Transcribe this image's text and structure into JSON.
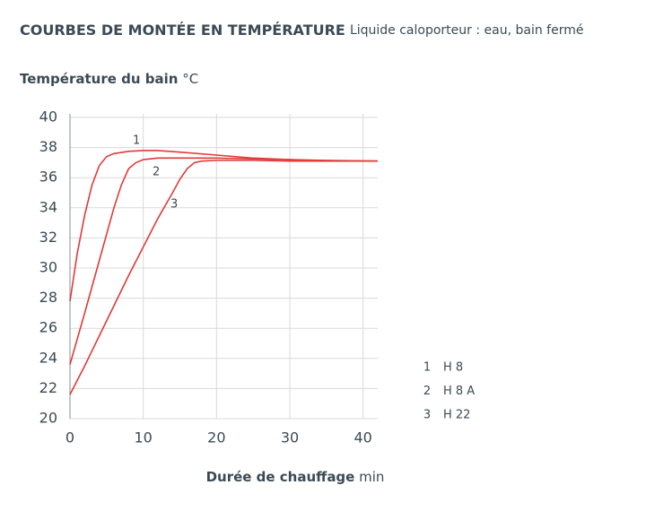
{
  "chart_data": {
    "type": "line",
    "title": "COURBES DE MONTÉE EN TEMPÉRATURE",
    "subtitle": "Liquide caloporteur : eau, bain fermé",
    "y_label": "Température du bain",
    "y_unit": "°C",
    "x_label": "Durée de chauffage",
    "x_unit": "min",
    "xlim": [
      0,
      42
    ],
    "xticks": [
      0,
      10,
      20,
      30,
      40
    ],
    "ylim": [
      20,
      40
    ],
    "yticks": [
      20,
      22,
      24,
      26,
      28,
      30,
      32,
      34,
      36,
      38,
      40
    ],
    "grid": true,
    "series": [
      {
        "label": "1",
        "name": "H 8",
        "color": "#e03a3a",
        "x": [
          0,
          1,
          2,
          3,
          4,
          5,
          6,
          8,
          10,
          12,
          15,
          20,
          25,
          30,
          35,
          42
        ],
        "values": [
          27.8,
          31,
          33.5,
          35.5,
          36.8,
          37.4,
          37.6,
          37.75,
          37.8,
          37.8,
          37.7,
          37.5,
          37.3,
          37.2,
          37.1,
          37.1
        ]
      },
      {
        "label": "2",
        "name": "H 8 A",
        "color": "#e03a3a",
        "x": [
          0,
          2,
          4,
          6,
          7,
          8,
          9,
          10,
          12,
          15,
          20,
          25,
          30,
          35,
          42
        ],
        "values": [
          23.6,
          27,
          30.5,
          34,
          35.5,
          36.6,
          37,
          37.2,
          37.3,
          37.3,
          37.3,
          37.25,
          37.2,
          37.15,
          37.1
        ]
      },
      {
        "label": "3",
        "name": "H 22",
        "color": "#e03a3a",
        "x": [
          0,
          2,
          4,
          6,
          8,
          10,
          12,
          14,
          15,
          16,
          17,
          18,
          20,
          25,
          30,
          35,
          42
        ],
        "values": [
          21.6,
          23.5,
          25.5,
          27.5,
          29.5,
          31.4,
          33.3,
          35,
          35.9,
          36.6,
          37,
          37.1,
          37.15,
          37.15,
          37.1,
          37.1,
          37.1
        ]
      }
    ]
  }
}
